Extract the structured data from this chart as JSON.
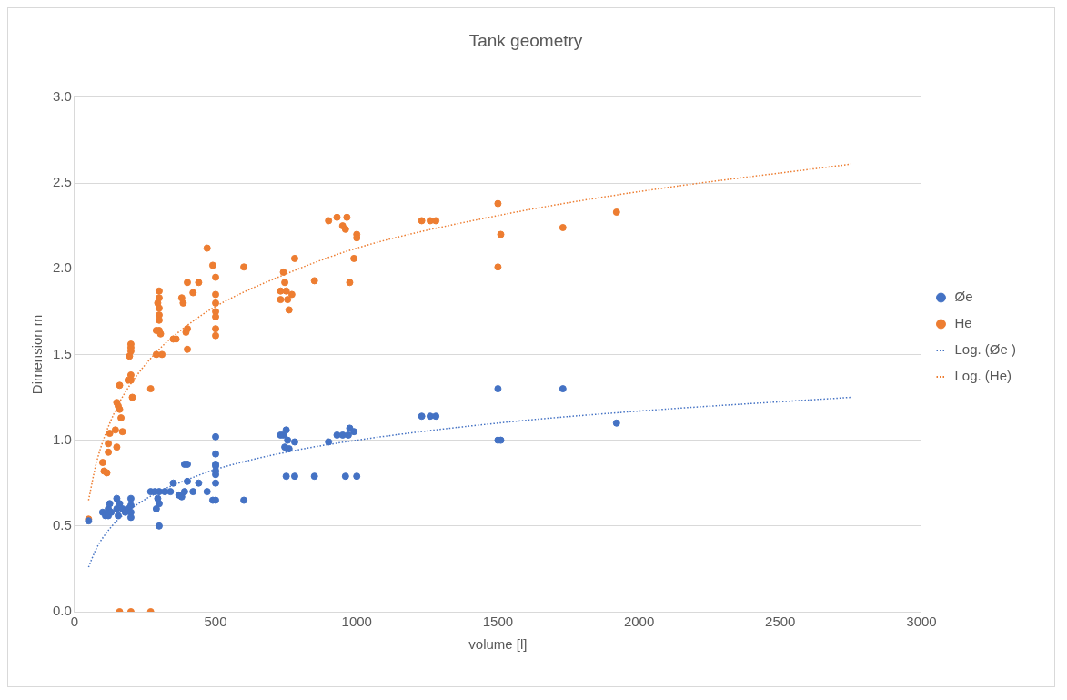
{
  "chart_data": {
    "type": "scatter",
    "title": "Tank geometry",
    "xlabel": "volume [l]",
    "ylabel": "Dimension m",
    "xlim": [
      0,
      3000
    ],
    "xticks": [
      0,
      500,
      1000,
      1500,
      2000,
      2500,
      3000
    ],
    "ylim": [
      0,
      3
    ],
    "yticks": [
      {
        "value": 0,
        "label": "0.0"
      },
      {
        "value": 0.5,
        "label": "0.5"
      },
      {
        "value": 1,
        "label": "1.0"
      },
      {
        "value": 1.5,
        "label": "1.5"
      },
      {
        "value": 2,
        "label": "2.0"
      },
      {
        "value": 2.5,
        "label": "2.5"
      },
      {
        "value": 3,
        "label": "3.0"
      }
    ],
    "grid": true,
    "legend": "right",
    "marker": "circle",
    "series": [
      {
        "name": "Øe",
        "color": "#4472c4",
        "x": [
          50,
          100,
          110,
          120,
          120,
          125,
          130,
          150,
          150,
          155,
          160,
          170,
          180,
          190,
          200,
          200,
          200,
          200,
          270,
          285,
          290,
          295,
          300,
          300,
          300,
          320,
          350,
          340,
          370,
          380,
          390,
          390,
          400,
          400,
          420,
          440,
          470,
          490,
          500,
          500,
          500,
          500,
          500,
          500,
          500,
          500,
          600,
          730,
          740,
          750,
          745,
          755,
          760,
          780,
          750,
          780,
          850,
          960,
          1000,
          900,
          930,
          950,
          970,
          975,
          990,
          1230,
          1260,
          1280,
          1500,
          1500,
          1510,
          1730,
          1920
        ],
        "values": [
          0.53,
          0.58,
          0.56,
          0.6,
          0.56,
          0.63,
          0.58,
          0.66,
          0.6,
          0.56,
          0.63,
          0.6,
          0.58,
          0.6,
          0.66,
          0.62,
          0.58,
          0.55,
          0.7,
          0.7,
          0.6,
          0.66,
          0.7,
          0.63,
          0.5,
          0.7,
          0.75,
          0.7,
          0.68,
          0.67,
          0.7,
          0.86,
          0.86,
          0.76,
          0.7,
          0.75,
          0.7,
          0.65,
          1.02,
          0.92,
          0.86,
          0.85,
          0.82,
          0.8,
          0.75,
          0.65,
          0.65,
          1.03,
          1.03,
          1.06,
          0.96,
          1.0,
          0.95,
          0.99,
          0.79,
          0.79,
          0.79,
          0.79,
          0.79,
          0.99,
          1.03,
          1.03,
          1.03,
          1.07,
          1.05,
          1.14,
          1.14,
          1.14,
          1.3,
          1.0,
          1.0,
          1.3,
          1.1
        ]
      },
      {
        "name": "He",
        "color": "#ed7d31",
        "x": [
          50,
          100,
          105,
          115,
          120,
          120,
          125,
          145,
          150,
          150,
          155,
          160,
          160,
          165,
          170,
          190,
          195,
          200,
          200,
          200,
          200,
          200,
          205,
          270,
          290,
          290,
          295,
          300,
          300,
          300,
          300,
          300,
          300,
          305,
          310,
          350,
          360,
          380,
          385,
          395,
          400,
          400,
          400,
          420,
          440,
          470,
          490,
          500,
          500,
          500,
          500,
          500,
          500,
          500,
          600,
          730,
          740,
          745,
          750,
          755,
          760,
          730,
          770,
          780,
          850,
          900,
          930,
          950,
          960,
          965,
          975,
          990,
          1000,
          1000,
          1230,
          1260,
          1280,
          1500,
          1500,
          1510,
          1730,
          1920,
          160,
          200,
          270
        ],
        "values": [
          0.54,
          0.87,
          0.82,
          0.81,
          0.98,
          0.93,
          1.04,
          1.06,
          0.96,
          1.22,
          1.2,
          1.18,
          1.32,
          1.13,
          1.05,
          1.35,
          1.49,
          1.56,
          1.54,
          1.52,
          1.38,
          1.35,
          1.25,
          1.3,
          1.5,
          1.64,
          1.8,
          1.87,
          1.83,
          1.77,
          1.73,
          1.7,
          1.64,
          1.62,
          1.5,
          1.59,
          1.59,
          1.83,
          1.8,
          1.63,
          1.65,
          1.53,
          1.92,
          1.86,
          1.92,
          2.12,
          2.02,
          1.95,
          1.85,
          1.8,
          1.75,
          1.72,
          1.65,
          1.61,
          2.01,
          1.87,
          1.98,
          1.92,
          1.87,
          1.82,
          1.76,
          1.82,
          1.85,
          2.06,
          1.93,
          2.28,
          2.3,
          2.25,
          2.23,
          2.3,
          1.92,
          2.06,
          2.2,
          2.18,
          2.28,
          2.28,
          2.28,
          2.38,
          2.01,
          2.2,
          2.24,
          2.33,
          0,
          0,
          0
        ]
      },
      {
        "name": "Log. (Øe )",
        "type": "line",
        "line_style": "dotted",
        "marker": "none",
        "color": "#4472c4",
        "x": [
          50,
          75,
          100,
          150,
          200,
          300,
          400,
          500,
          750,
          1000,
          1500,
          2000,
          2750
        ],
        "values": [
          0.26,
          0.36,
          0.43,
          0.53,
          0.6,
          0.7,
          0.77,
          0.83,
          0.93,
          1.0,
          1.1,
          1.17,
          1.25
        ]
      },
      {
        "name": "Log. (He)",
        "type": "line",
        "line_style": "dotted",
        "marker": "none",
        "color": "#ed7d31",
        "x": [
          50,
          75,
          100,
          150,
          200,
          300,
          400,
          500,
          750,
          1000,
          1500,
          2000,
          2750
        ],
        "values": [
          0.65,
          0.85,
          0.99,
          1.19,
          1.33,
          1.53,
          1.67,
          1.78,
          1.97,
          2.12,
          2.31,
          2.45,
          2.61
        ]
      }
    ]
  }
}
